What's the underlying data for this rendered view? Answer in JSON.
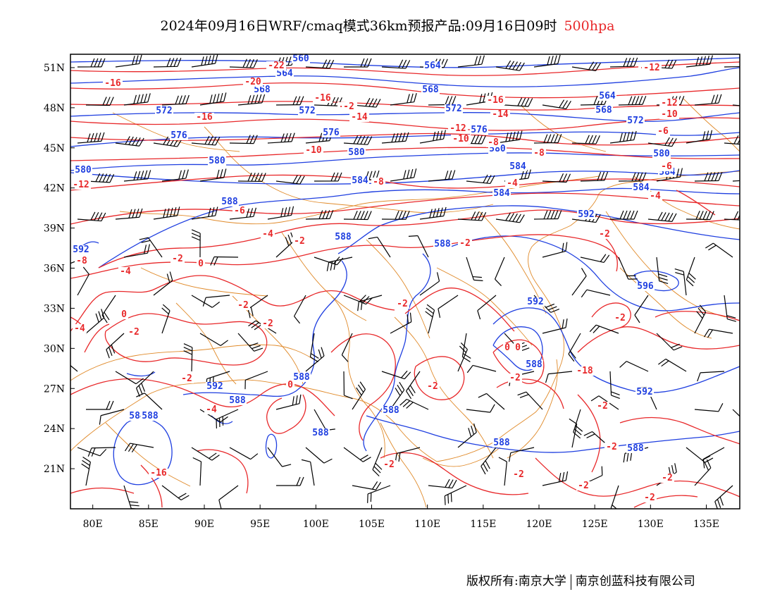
{
  "title": {
    "main": "2024年09月16日WRF/cmaq模式36km预报产品:09月16日09时",
    "level": "500hpa",
    "level_color": "#e8282a"
  },
  "map": {
    "lon_range": [
      78,
      138
    ],
    "lat_range": [
      18,
      52
    ],
    "x_ticks": [
      "80E",
      "85E",
      "90E",
      "95E",
      "100E",
      "105E",
      "110E",
      "115E",
      "120E",
      "125E",
      "130E",
      "135E"
    ],
    "y_ticks": [
      "51N",
      "48N",
      "45N",
      "42N",
      "39N",
      "36N",
      "33N",
      "30N",
      "27N",
      "24N",
      "21N"
    ],
    "colors": {
      "height_contour": "#1f3fe0",
      "temperature_contour": "#e8282a",
      "borders": "#e08a2a",
      "wind_barb": "#000000"
    },
    "height_labels": [
      {
        "text": "560"
      },
      {
        "text": "564"
      },
      {
        "text": "564"
      },
      {
        "text": "568"
      },
      {
        "text": "568"
      },
      {
        "text": "564"
      },
      {
        "text": "572"
      },
      {
        "text": "572"
      },
      {
        "text": "572"
      },
      {
        "text": "568"
      },
      {
        "text": "572"
      },
      {
        "text": "576"
      },
      {
        "text": "576"
      },
      {
        "text": "576"
      },
      {
        "text": "580"
      },
      {
        "text": "580"
      },
      {
        "text": "580"
      },
      {
        "text": "580"
      },
      {
        "text": "580"
      },
      {
        "text": "584"
      },
      {
        "text": "584"
      },
      {
        "text": "584"
      },
      {
        "text": "584"
      },
      {
        "text": "588"
      },
      {
        "text": "588"
      },
      {
        "text": "588"
      },
      {
        "text": "592"
      },
      {
        "text": "592"
      },
      {
        "text": "592"
      },
      {
        "text": "592"
      },
      {
        "text": "588"
      },
      {
        "text": "588"
      },
      {
        "text": "588"
      },
      {
        "text": "588"
      },
      {
        "text": "588"
      },
      {
        "text": "588"
      },
      {
        "text": "592"
      },
      {
        "text": "584"
      },
      {
        "text": "588"
      },
      {
        "text": "588"
      },
      {
        "text": "584"
      },
      {
        "text": "596"
      }
    ],
    "temperature_labels": [
      {
        "text": "-22"
      },
      {
        "text": "-20"
      },
      {
        "text": "-16"
      },
      {
        "text": "-16"
      },
      {
        "text": "-18"
      },
      {
        "text": "-16"
      },
      {
        "text": "-16"
      },
      {
        "text": "-14"
      },
      {
        "text": "-16"
      },
      {
        "text": "-14"
      },
      {
        "text": "-12"
      },
      {
        "text": "-10"
      },
      {
        "text": "-12"
      },
      {
        "text": "-10"
      },
      {
        "text": "-8"
      },
      {
        "text": "-8"
      },
      {
        "text": "-10"
      },
      {
        "text": "-6"
      },
      {
        "text": "-8"
      },
      {
        "text": "-6"
      },
      {
        "text": "-12"
      },
      {
        "text": "-4"
      },
      {
        "text": "-4"
      },
      {
        "text": "-6"
      },
      {
        "text": "-4"
      },
      {
        "text": "-2"
      },
      {
        "text": "-2"
      },
      {
        "text": "-2"
      },
      {
        "text": "-8"
      },
      {
        "text": "-4"
      },
      {
        "text": "0"
      },
      {
        "text": "-2"
      },
      {
        "text": "0"
      },
      {
        "text": "-4"
      },
      {
        "text": "-2"
      },
      {
        "text": "-2"
      },
      {
        "text": "0"
      },
      {
        "text": "-2"
      },
      {
        "text": "0"
      },
      {
        "text": "0"
      },
      {
        "text": "-2"
      },
      {
        "text": "-2"
      },
      {
        "text": "-2"
      },
      {
        "text": "-2"
      },
      {
        "text": "-2"
      },
      {
        "text": "-2"
      },
      {
        "text": "-2"
      },
      {
        "text": "-2"
      },
      {
        "text": "-2"
      },
      {
        "text": "-2"
      },
      {
        "text": "-2"
      },
      {
        "text": "-2"
      },
      {
        "text": "-16"
      },
      {
        "text": "-4"
      },
      {
        "text": "-12"
      },
      {
        "text": "-18"
      },
      {
        "text": "-16"
      },
      {
        "text": "-2"
      }
    ]
  },
  "footer": {
    "left": "版权所有:南京大学",
    "right": "南京创蓝科技有限公司"
  }
}
